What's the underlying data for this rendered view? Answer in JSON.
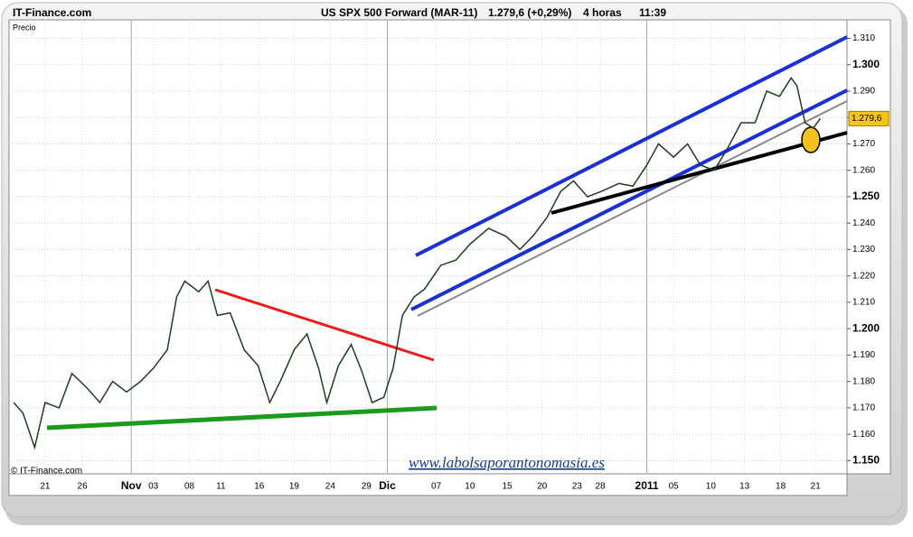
{
  "chart_data": {
    "type": "line",
    "source": "IT-Finance.com",
    "title": "US SPX 500 Forward (MAR-11)",
    "quote": "1.279,6 (+0,29%)",
    "interval": "4 horas",
    "time": "11:39",
    "y_label": "Precio",
    "copyright": "© IT-Finance.com",
    "watermark": "www.labolsaporantonomasia.es",
    "last_label": "1.279,6",
    "grid": true,
    "xlim": [
      0,
      72
    ],
    "ylim": [
      1145,
      1317
    ],
    "xticks": [
      {
        "value": 3.1,
        "label": "21"
      },
      {
        "value": 6.3,
        "label": "26"
      },
      {
        "value": 10.5,
        "label": "Nov"
      },
      {
        "value": 12.4,
        "label": "03"
      },
      {
        "value": 15.5,
        "label": "08"
      },
      {
        "value": 18.2,
        "label": "11"
      },
      {
        "value": 21.5,
        "label": "16"
      },
      {
        "value": 24.5,
        "label": "19"
      },
      {
        "value": 27.6,
        "label": "24"
      },
      {
        "value": 30.7,
        "label": "29"
      },
      {
        "value": 32.5,
        "label": "Dic"
      },
      {
        "value": 36.7,
        "label": "07"
      },
      {
        "value": 39.6,
        "label": "10"
      },
      {
        "value": 42.8,
        "label": "15"
      },
      {
        "value": 45.8,
        "label": "20"
      },
      {
        "value": 48.8,
        "label": "23"
      },
      {
        "value": 50.8,
        "label": "28"
      },
      {
        "value": 54.8,
        "label": "2011"
      },
      {
        "value": 57.1,
        "label": "05"
      },
      {
        "value": 60.3,
        "label": "10"
      },
      {
        "value": 63.2,
        "label": "13"
      },
      {
        "value": 66.3,
        "label": "18"
      },
      {
        "value": 69.3,
        "label": "21"
      }
    ],
    "yticks": [
      {
        "value": 1150,
        "label": "1.150"
      },
      {
        "value": 1160,
        "label": "1.160"
      },
      {
        "value": 1170,
        "label": "1.170"
      },
      {
        "value": 1180,
        "label": "1.180"
      },
      {
        "value": 1190,
        "label": "1.190"
      },
      {
        "value": 1200,
        "label": "1.200"
      },
      {
        "value": 1210,
        "label": "1.210"
      },
      {
        "value": 1220,
        "label": "1.220"
      },
      {
        "value": 1230,
        "label": "1.230"
      },
      {
        "value": 1240,
        "label": "1.240"
      },
      {
        "value": 1250,
        "label": "1.250"
      },
      {
        "value": 1260,
        "label": "1.260"
      },
      {
        "value": 1270,
        "label": "1.270"
      },
      {
        "value": 1280,
        "label": "1.280"
      },
      {
        "value": 1290,
        "label": "1.290"
      },
      {
        "value": 1300,
        "label": "1.300"
      },
      {
        "value": 1310,
        "label": "1.310"
      }
    ],
    "series": [
      {
        "name": "Precio",
        "color": "#1f3d1f",
        "x": [
          0.4,
          1.2,
          2.2,
          3.1,
          4.3,
          5.4,
          6.6,
          7.8,
          8.9,
          10.1,
          11.3,
          12.4,
          13.6,
          14.4,
          15.1,
          16.3,
          17.1,
          17.9,
          19.0,
          20.2,
          21.4,
          22.4,
          23.3,
          24.5,
          25.6,
          26.6,
          27.3,
          28.3,
          29.4,
          30.3,
          31.2,
          32.2,
          33.0,
          33.8,
          34.8,
          35.7,
          37.1,
          38.4,
          39.6,
          41.2,
          42.7,
          43.9,
          45.0,
          46.2,
          47.4,
          48.5,
          49.7,
          50.9,
          52.4,
          53.6,
          54.8,
          55.8,
          57.1,
          58.3,
          59.4,
          60.6,
          61.7,
          62.9,
          64.1,
          65.1,
          66.2,
          67.2,
          67.7,
          68.4,
          69.1,
          69.7
        ],
        "values": [
          1172,
          1168,
          1155,
          1172,
          1170,
          1183,
          1178,
          1172,
          1180,
          1176,
          1180,
          1185,
          1192,
          1212,
          1218,
          1214,
          1218,
          1205,
          1206,
          1192,
          1186,
          1172,
          1180,
          1192,
          1198,
          1185,
          1172,
          1186,
          1194,
          1184,
          1172,
          1174,
          1185,
          1205,
          1212,
          1215,
          1224,
          1226,
          1232,
          1238,
          1235,
          1230,
          1235,
          1242,
          1252,
          1256,
          1250,
          1252,
          1255,
          1254,
          1262,
          1270,
          1265,
          1270,
          1262,
          1260,
          1268,
          1278,
          1278,
          1290,
          1288,
          1295,
          1292,
          1278,
          1276,
          1279.6
        ]
      }
    ]
  }
}
